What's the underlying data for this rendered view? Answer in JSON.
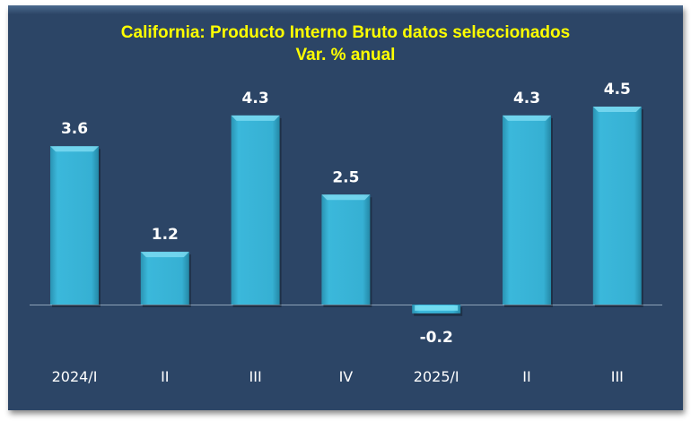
{
  "chart_data": {
    "type": "bar",
    "title": "California: Producto Interno Bruto datos seleccionados",
    "subtitle": "Var. % anual",
    "categories": [
      "2024/I",
      "II",
      "III",
      "IV",
      "2025/I",
      "II",
      "III"
    ],
    "values": [
      3.6,
      1.2,
      4.3,
      2.5,
      -0.2,
      4.3,
      4.5
    ],
    "data_labels": [
      "3.6",
      "1.2",
      "4.3",
      "2.5",
      "-0.2",
      "4.3",
      "4.5"
    ],
    "xlabel": "",
    "ylabel": "",
    "grid": false,
    "legend": "none",
    "colors": {
      "bar": "#35b3d6",
      "background": "#2c4566",
      "title": "#ffff00",
      "text": "#ffffff"
    }
  }
}
